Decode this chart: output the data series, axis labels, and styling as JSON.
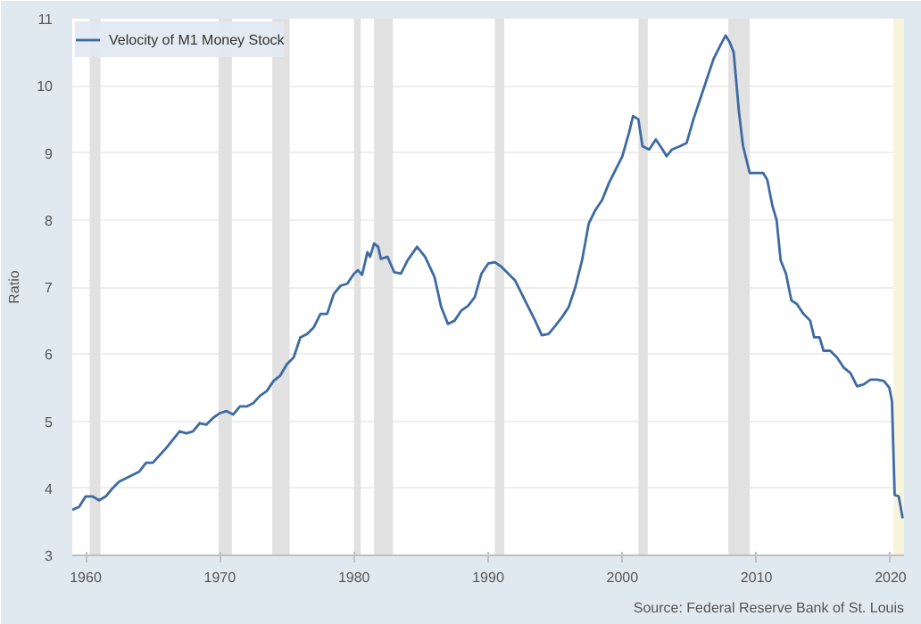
{
  "chart_data": {
    "type": "line",
    "ylabel": "Ratio",
    "xlim": [
      1959,
      2021
    ],
    "xticks": [
      1960,
      1970,
      1980,
      1990,
      2000,
      2010,
      2020
    ],
    "ylim": [
      3,
      11
    ],
    "yticks": [
      3,
      4,
      5,
      6,
      7,
      8,
      9,
      10,
      11
    ],
    "grid": "y",
    "legend": "top left",
    "annotations": [
      "Source: Federal Reserve Bank of St. Louis"
    ],
    "bands": [
      {
        "axis": "x",
        "from": 1960.3,
        "to": 1961.1,
        "color": "#e1e1e1"
      },
      {
        "axis": "x",
        "from": 1969.9,
        "to": 1970.9,
        "color": "#e1e1e1"
      },
      {
        "axis": "x",
        "from": 1973.9,
        "to": 1975.2,
        "color": "#e1e1e1"
      },
      {
        "axis": "x",
        "from": 1980.0,
        "to": 1980.5,
        "color": "#e1e1e1"
      },
      {
        "axis": "x",
        "from": 1981.5,
        "to": 1982.9,
        "color": "#e1e1e1"
      },
      {
        "axis": "x",
        "from": 1990.5,
        "to": 1991.2,
        "color": "#e1e1e1"
      },
      {
        "axis": "x",
        "from": 2001.2,
        "to": 2001.9,
        "color": "#e1e1e1"
      },
      {
        "axis": "x",
        "from": 2007.9,
        "to": 2009.5,
        "color": "#e1e1e1"
      },
      {
        "axis": "x",
        "from": 2020.2,
        "to": 2021,
        "color": "#f7f4dc"
      }
    ],
    "series": [
      {
        "name": "Velocity of M1 Money Stock",
        "color": "#3e6aa3",
        "x": [
          1959.0,
          1959.5,
          1960.0,
          1960.5,
          1961.0,
          1961.5,
          1962,
          1962.5,
          1963,
          1964,
          1964.5,
          1965,
          1966,
          1967,
          1967.5,
          1968,
          1968.5,
          1969,
          1969.5,
          1970,
          1970.5,
          1971,
          1971.5,
          1972,
          1972.5,
          1973,
          1973.5,
          1974,
          1974.5,
          1975,
          1975.5,
          1976,
          1976.5,
          1977,
          1977.5,
          1978,
          1978.5,
          1979,
          1979.5,
          1980,
          1980.3,
          1980.6,
          1981,
          1981.2,
          1981.5,
          1981.8,
          1982,
          1982.5,
          1983,
          1983.5,
          1984,
          1984.7,
          1985.3,
          1986,
          1986.5,
          1987,
          1987.5,
          1988,
          1988.5,
          1989,
          1989.5,
          1990,
          1990.5,
          1991,
          1991.5,
          1992,
          1992.5,
          1993,
          1993.5,
          1994,
          1994.5,
          1995,
          1995.5,
          1996,
          1996.5,
          1997,
          1997.5,
          1998,
          1998.5,
          1999,
          1999.5,
          2000,
          2000.5,
          2000.8,
          2001.2,
          2001.5,
          2002,
          2002.5,
          2003,
          2003.3,
          2003.7,
          2004.3,
          2004.8,
          2005.3,
          2005.8,
          2006.3,
          2006.8,
          2007.3,
          2007.7,
          2008,
          2008.3,
          2008.7,
          2009,
          2009.5,
          2010,
          2010.5,
          2010.8,
          2011.2,
          2011.5,
          2011.8,
          2012.2,
          2012.6,
          2013,
          2013.5,
          2014,
          2014.3,
          2014.7,
          2015,
          2015.5,
          2016,
          2016.5,
          2017,
          2017.5,
          2018,
          2018.5,
          2019,
          2019.5,
          2019.9,
          2020.1,
          2020.3,
          2020.6,
          2020.9
        ],
        "values": [
          3.68,
          3.72,
          3.88,
          3.88,
          3.82,
          3.88,
          4.0,
          4.1,
          4.15,
          4.25,
          4.38,
          4.38,
          4.6,
          4.85,
          4.82,
          4.85,
          4.97,
          4.95,
          5.05,
          5.12,
          5.15,
          5.1,
          5.22,
          5.22,
          5.27,
          5.38,
          5.45,
          5.6,
          5.68,
          5.85,
          5.95,
          6.25,
          6.3,
          6.4,
          6.6,
          6.6,
          6.9,
          7.02,
          7.05,
          7.2,
          7.25,
          7.18,
          7.52,
          7.45,
          7.65,
          7.6,
          7.42,
          7.45,
          7.22,
          7.2,
          7.4,
          7.6,
          7.45,
          7.15,
          6.7,
          6.45,
          6.5,
          6.65,
          6.72,
          6.85,
          7.2,
          7.35,
          7.37,
          7.3,
          7.2,
          7.1,
          6.9,
          6.7,
          6.5,
          6.28,
          6.3,
          6.42,
          6.55,
          6.7,
          7.0,
          7.4,
          7.95,
          8.15,
          8.3,
          8.55,
          8.75,
          8.95,
          9.3,
          9.55,
          9.5,
          9.1,
          9.05,
          9.2,
          9.05,
          8.95,
          9.05,
          9.1,
          9.15,
          9.5,
          9.8,
          10.1,
          10.4,
          10.6,
          10.75,
          10.65,
          10.5,
          9.6,
          9.1,
          8.7,
          8.7,
          8.7,
          8.6,
          8.2,
          8.0,
          7.4,
          7.2,
          6.8,
          6.75,
          6.6,
          6.5,
          6.25,
          6.25,
          6.05,
          6.05,
          5.95,
          5.8,
          5.72,
          5.52,
          5.55,
          5.62,
          5.62,
          5.6,
          5.5,
          5.3,
          3.9,
          3.88,
          3.55
        ]
      }
    ]
  }
}
